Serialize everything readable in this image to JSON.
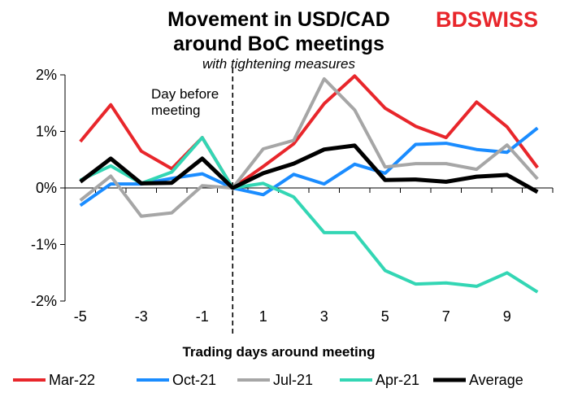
{
  "logo": {
    "text_a": "BD",
    "text_b": "SWISS",
    "color": "#e8262b"
  },
  "chart_data": {
    "type": "line",
    "title_line1": "Movement in USD/CAD",
    "title_line2": "around BoC meetings",
    "subtitle": "with tightening measures",
    "xlabel": "Trading days around meeting",
    "ylabel": "",
    "annotation_line1": "Day before",
    "annotation_line2": "meeting",
    "x": [
      -5,
      -4,
      -3,
      -2,
      -1,
      0,
      1,
      2,
      3,
      4,
      5,
      6,
      7,
      8,
      9,
      10
    ],
    "x_ticks": [
      -5,
      -3,
      -1,
      1,
      3,
      5,
      7,
      9
    ],
    "x_tick_labels": [
      "-5",
      "-3",
      "-1",
      "1",
      "3",
      "5",
      "7",
      "9"
    ],
    "xlim": [
      -5.5,
      10.5
    ],
    "ylim": [
      -2,
      2
    ],
    "y_ticks": [
      -2,
      -1,
      0,
      1,
      2
    ],
    "y_tick_labels": [
      "-2%",
      "-1%",
      "0%",
      "1%",
      "2%"
    ],
    "grid": false,
    "legend_position": "bottom",
    "series": [
      {
        "name": "Mar-22",
        "color": "#e8262b",
        "width": 4,
        "values": [
          0.82,
          1.47,
          0.65,
          0.34,
          0.89,
          0.0,
          0.38,
          0.78,
          1.49,
          1.98,
          1.41,
          1.09,
          0.89,
          1.52,
          1.08,
          0.36
        ]
      },
      {
        "name": "Oct-21",
        "color": "#1a8cff",
        "width": 4,
        "values": [
          -0.31,
          0.07,
          0.07,
          0.17,
          0.25,
          0.0,
          -0.12,
          0.24,
          0.07,
          0.42,
          0.26,
          0.77,
          0.79,
          0.68,
          0.63,
          1.06
        ]
      },
      {
        "name": "Jul-21",
        "color": "#a6a6a6",
        "width": 4,
        "values": [
          -0.22,
          0.21,
          -0.5,
          -0.44,
          0.04,
          0.0,
          0.69,
          0.84,
          1.93,
          1.38,
          0.37,
          0.43,
          0.43,
          0.33,
          0.76,
          0.16
        ]
      },
      {
        "name": "Apr-21",
        "color": "#33d6b4",
        "width": 4,
        "values": [
          0.14,
          0.39,
          0.08,
          0.28,
          0.89,
          0.0,
          0.08,
          -0.16,
          -0.79,
          -0.79,
          -1.46,
          -1.7,
          -1.68,
          -1.74,
          -1.5,
          -1.84
        ]
      },
      {
        "name": "Average",
        "color": "#000000",
        "width": 5,
        "values": [
          0.11,
          0.52,
          0.08,
          0.09,
          0.52,
          0.0,
          0.26,
          0.43,
          0.68,
          0.75,
          0.14,
          0.15,
          0.11,
          0.2,
          0.23,
          -0.07
        ]
      }
    ]
  }
}
